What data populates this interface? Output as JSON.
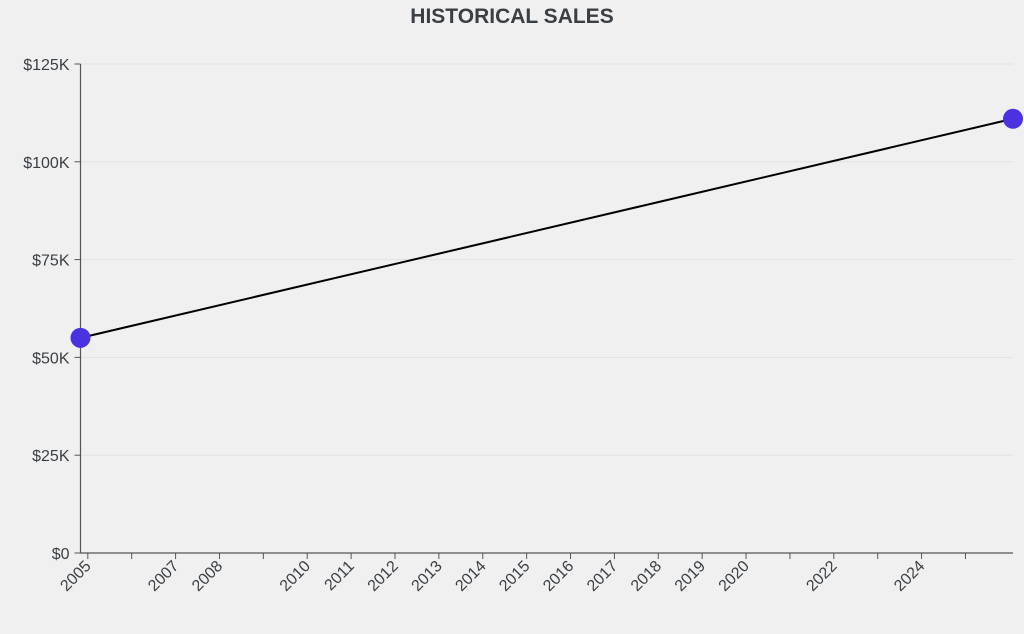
{
  "chart_data": {
    "type": "line",
    "title": "HISTORICAL SALES",
    "xlabel": "",
    "ylabel": "",
    "x": [
      "2004-11",
      "2026-02"
    ],
    "values": [
      55000,
      111000
    ],
    "ylim": [
      0,
      125000
    ],
    "xlim": [
      "2004-11",
      "2026-02"
    ],
    "y_ticks": [
      0,
      25000,
      50000,
      75000,
      100000,
      125000
    ],
    "y_tick_labels": [
      "$0",
      "$25K",
      "$50K",
      "$75K",
      "$100K",
      "$125K"
    ],
    "x_ticks": [
      2005,
      2006,
      2007,
      2008,
      2009,
      2010,
      2011,
      2012,
      2013,
      2014,
      2015,
      2016,
      2017,
      2018,
      2019,
      2020,
      2021,
      2022,
      2023,
      2024,
      2025
    ],
    "x_tick_labels": [
      "2005",
      "",
      "2007",
      "2008",
      "",
      "2010",
      "2011",
      "2012",
      "2013",
      "2014",
      "2015",
      "2016",
      "2017",
      "2018",
      "2019",
      "2020",
      "",
      "2022",
      "",
      "2024",
      ""
    ],
    "grid": "horizontal",
    "line_color": "#000000",
    "marker_color": "#4a32e0"
  }
}
